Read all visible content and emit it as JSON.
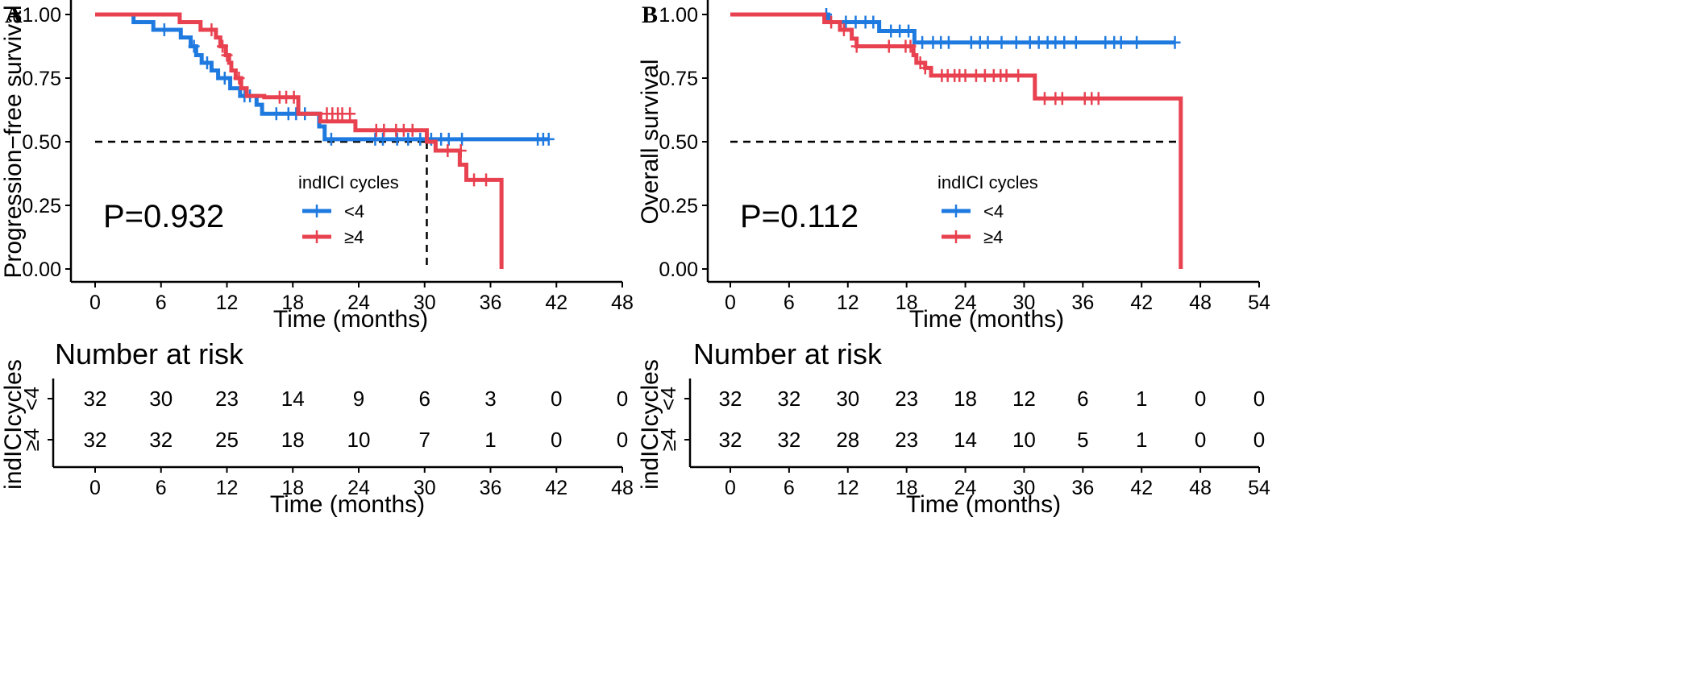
{
  "colors": {
    "lt4": "#1F7AE0",
    "ge4": "#E8414F",
    "axis": "#000000"
  },
  "chart_data": [
    {
      "panel_label": "A",
      "type": "line",
      "subtype": "kaplan-meier",
      "ylabel": "Progression−free survival",
      "xlabel": "Time (months)",
      "xlim": [
        0,
        48
      ],
      "ylim": [
        0,
        1
      ],
      "x_ticks": [
        0,
        6,
        12,
        18,
        24,
        30,
        36,
        42,
        48
      ],
      "y_ticks": [
        "0.00",
        "0.25",
        "0.50",
        "0.75",
        "1.00"
      ],
      "y_tick_values": [
        0,
        0.25,
        0.5,
        0.75,
        1
      ],
      "p_value": "P=0.932",
      "legend_title": "indICI cycles",
      "median_line": {
        "y": 0.5,
        "x_end": 30.2,
        "drop_x": 30.2
      },
      "series": [
        {
          "name": "<4",
          "color_key": "lt4",
          "steps": [
            [
              0,
              1
            ],
            [
              3.5,
              0.97
            ],
            [
              5.3,
              0.94
            ],
            [
              7.8,
              0.91
            ],
            [
              8.7,
              0.875
            ],
            [
              9.2,
              0.84
            ],
            [
              9.7,
              0.81
            ],
            [
              10.6,
              0.78
            ],
            [
              11.2,
              0.75
            ],
            [
              12.3,
              0.71
            ],
            [
              13.2,
              0.68
            ],
            [
              14.7,
              0.645
            ],
            [
              15.2,
              0.61
            ],
            [
              20.4,
              0.56
            ],
            [
              20.9,
              0.51
            ],
            [
              41.3,
              0.51
            ]
          ],
          "censors": [
            [
              6.3,
              0.94
            ],
            [
              9.0,
              0.875
            ],
            [
              10.2,
              0.81
            ],
            [
              11.8,
              0.75
            ],
            [
              13.6,
              0.68
            ],
            [
              14.1,
              0.68
            ],
            [
              16.5,
              0.61
            ],
            [
              17.6,
              0.61
            ],
            [
              18.3,
              0.61
            ],
            [
              19.1,
              0.61
            ],
            [
              21.5,
              0.51
            ],
            [
              25.5,
              0.51
            ],
            [
              26.2,
              0.51
            ],
            [
              27.5,
              0.51
            ],
            [
              28.5,
              0.51
            ],
            [
              29.6,
              0.51
            ],
            [
              30.6,
              0.51
            ],
            [
              31.5,
              0.51
            ],
            [
              32.2,
              0.51
            ],
            [
              33.4,
              0.51
            ],
            [
              40.3,
              0.51
            ],
            [
              40.8,
              0.51
            ],
            [
              41.3,
              0.51
            ]
          ]
        },
        {
          "name": "≥4",
          "color_key": "ge4",
          "steps": [
            [
              0,
              1
            ],
            [
              7.7,
              0.97
            ],
            [
              9.6,
              0.94
            ],
            [
              11.0,
              0.91
            ],
            [
              11.4,
              0.875
            ],
            [
              11.9,
              0.84
            ],
            [
              12.2,
              0.81
            ],
            [
              12.4,
              0.78
            ],
            [
              12.8,
              0.75
            ],
            [
              13.3,
              0.71
            ],
            [
              13.8,
              0.68
            ],
            [
              15.4,
              0.675
            ],
            [
              18.5,
              0.61
            ],
            [
              20.5,
              0.58
            ],
            [
              23.7,
              0.545
            ],
            [
              30.2,
              0.5
            ],
            [
              31.0,
              0.465
            ],
            [
              33.2,
              0.41
            ],
            [
              33.8,
              0.35
            ],
            [
              35.4,
              0.35
            ],
            [
              37.0,
              0
            ],
            [
              37.0,
              0
            ]
          ],
          "censors": [
            [
              10.6,
              0.94
            ],
            [
              11.6,
              0.875
            ],
            [
              12.0,
              0.84
            ],
            [
              13.1,
              0.75
            ],
            [
              16.8,
              0.675
            ],
            [
              17.4,
              0.675
            ],
            [
              18.1,
              0.675
            ],
            [
              21.1,
              0.61
            ],
            [
              21.6,
              0.61
            ],
            [
              22.1,
              0.61
            ],
            [
              22.5,
              0.61
            ],
            [
              23.2,
              0.61
            ],
            [
              25.6,
              0.545
            ],
            [
              26.3,
              0.545
            ],
            [
              27.4,
              0.545
            ],
            [
              28.1,
              0.545
            ],
            [
              28.9,
              0.545
            ],
            [
              32.1,
              0.465
            ],
            [
              33.3,
              0.465
            ],
            [
              34.5,
              0.35
            ],
            [
              35.6,
              0.35
            ]
          ]
        }
      ],
      "risk_table": {
        "title": "Number at risk",
        "ylabel": "indICIcycles",
        "groups": [
          {
            "label": "<4",
            "color_key": "lt4",
            "counts": [
              "32",
              "30",
              "23",
              "14",
              "9",
              "6",
              "3",
              "0",
              "0"
            ]
          },
          {
            "label": "≥4",
            "color_key": "ge4",
            "counts": [
              "32",
              "32",
              "25",
              "18",
              "10",
              "7",
              "1",
              "0",
              "0"
            ]
          }
        ],
        "x_ticks": [
          0,
          6,
          12,
          18,
          24,
          30,
          36,
          42,
          48
        ],
        "xlabel": "Time (months)"
      }
    },
    {
      "panel_label": "B",
      "type": "line",
      "subtype": "kaplan-meier",
      "ylabel": "Overall survival",
      "xlabel": "Time (months)",
      "xlim": [
        0,
        54
      ],
      "ylim": [
        0,
        1
      ],
      "x_ticks": [
        0,
        6,
        12,
        18,
        24,
        30,
        36,
        42,
        48,
        54
      ],
      "y_ticks": [
        "0.00",
        "0.25",
        "0.50",
        "0.75",
        "1.00"
      ],
      "y_tick_values": [
        0,
        0.25,
        0.5,
        0.75,
        1
      ],
      "p_value": "P=0.112",
      "legend_title": "indICI cycles",
      "median_line": {
        "y": 0.5,
        "x_end": 46.0,
        "drop_x": 46.0
      },
      "series": [
        {
          "name": "<4",
          "color_key": "lt4",
          "steps": [
            [
              0,
              1
            ],
            [
              10.0,
              0.97
            ],
            [
              15.2,
              0.935
            ],
            [
              18.8,
              0.89
            ],
            [
              45.4,
              0.89
            ]
          ],
          "censors": [
            [
              9.8,
              1.0
            ],
            [
              11.8,
              0.97
            ],
            [
              12.8,
              0.97
            ],
            [
              13.8,
              0.97
            ],
            [
              14.6,
              0.97
            ],
            [
              16.4,
              0.935
            ],
            [
              17.3,
              0.935
            ],
            [
              18.2,
              0.935
            ],
            [
              19.6,
              0.89
            ],
            [
              20.7,
              0.89
            ],
            [
              21.5,
              0.89
            ],
            [
              22.3,
              0.89
            ],
            [
              24.6,
              0.89
            ],
            [
              25.5,
              0.89
            ],
            [
              26.3,
              0.89
            ],
            [
              27.7,
              0.89
            ],
            [
              29.2,
              0.89
            ],
            [
              30.6,
              0.89
            ],
            [
              31.5,
              0.89
            ],
            [
              32.4,
              0.89
            ],
            [
              33.2,
              0.89
            ],
            [
              34.1,
              0.89
            ],
            [
              35.3,
              0.89
            ],
            [
              38.3,
              0.89
            ],
            [
              39.2,
              0.89
            ],
            [
              39.9,
              0.89
            ],
            [
              41.5,
              0.89
            ],
            [
              45.4,
              0.89
            ]
          ]
        },
        {
          "name": "≥4",
          "color_key": "ge4",
          "steps": [
            [
              0,
              1
            ],
            [
              9.6,
              0.97
            ],
            [
              11.2,
              0.94
            ],
            [
              12.4,
              0.905
            ],
            [
              12.9,
              0.875
            ],
            [
              18.7,
              0.84
            ],
            [
              19.0,
              0.81
            ],
            [
              19.9,
              0.79
            ],
            [
              20.5,
              0.76
            ],
            [
              31.1,
              0.67
            ],
            [
              46.0,
              0.67
            ],
            [
              46.0,
              0
            ]
          ],
          "censors": [
            [
              10.3,
              0.97
            ],
            [
              11.6,
              0.94
            ],
            [
              12.9,
              0.875
            ],
            [
              16.2,
              0.875
            ],
            [
              17.9,
              0.875
            ],
            [
              18.4,
              0.875
            ],
            [
              19.4,
              0.81
            ],
            [
              19.9,
              0.79
            ],
            [
              21.6,
              0.76
            ],
            [
              22.2,
              0.76
            ],
            [
              22.9,
              0.76
            ],
            [
              23.4,
              0.76
            ],
            [
              24.0,
              0.76
            ],
            [
              25.1,
              0.76
            ],
            [
              26.0,
              0.76
            ],
            [
              26.9,
              0.76
            ],
            [
              27.6,
              0.76
            ],
            [
              28.2,
              0.76
            ],
            [
              29.4,
              0.76
            ],
            [
              32.1,
              0.67
            ],
            [
              33.2,
              0.67
            ],
            [
              33.9,
              0.67
            ],
            [
              36.2,
              0.67
            ],
            [
              36.9,
              0.67
            ],
            [
              37.6,
              0.67
            ]
          ]
        }
      ],
      "risk_table": {
        "title": "Number at risk",
        "ylabel": "indICIcycles",
        "groups": [
          {
            "label": "<4",
            "color_key": "lt4",
            "counts": [
              "32",
              "32",
              "30",
              "23",
              "18",
              "12",
              "6",
              "1",
              "0",
              "0"
            ]
          },
          {
            "label": "≥4",
            "color_key": "ge4",
            "counts": [
              "32",
              "32",
              "28",
              "23",
              "14",
              "10",
              "5",
              "1",
              "0",
              "0"
            ]
          }
        ],
        "x_ticks": [
          0,
          6,
          12,
          18,
          24,
          30,
          36,
          42,
          48,
          54
        ],
        "xlabel": "Time (months)"
      }
    }
  ]
}
